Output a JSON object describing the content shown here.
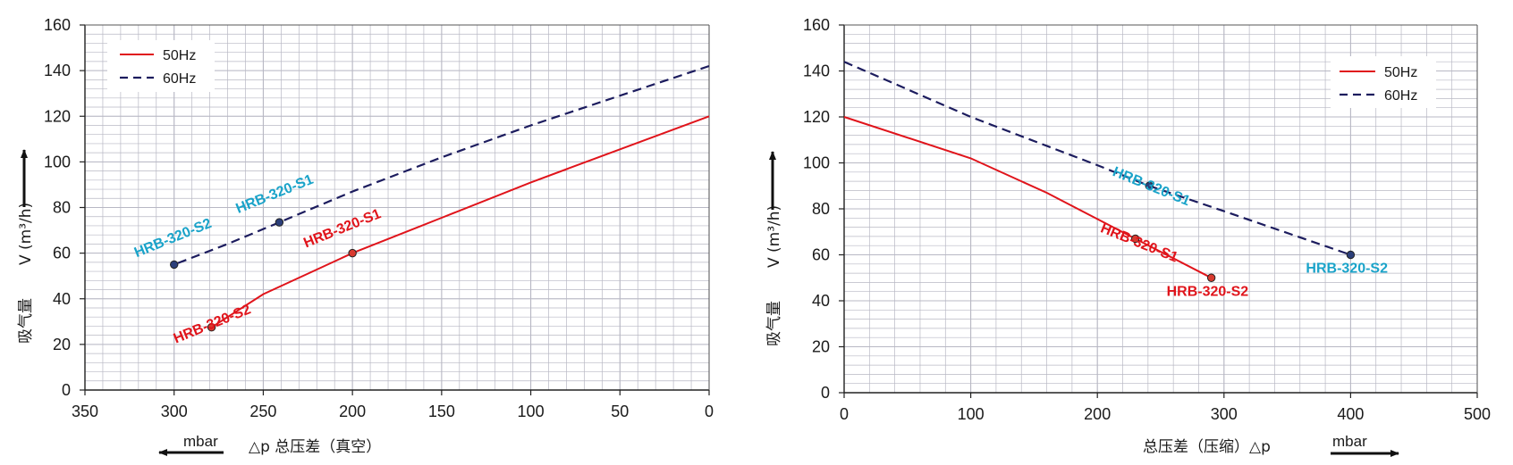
{
  "colors": {
    "hz50": "#e0141b",
    "hz60": "#1c1c5e",
    "label50": "#e0141b",
    "label60": "#1aa3c9",
    "grid": "#b8b8c4"
  },
  "chart_data": [
    {
      "type": "line",
      "xlabel": "△p  总压差（真空）",
      "ylabel_line1": "吸气量",
      "ylabel_line2": "V (m³/h)",
      "x_unit": "mbar",
      "xlim": [
        350,
        0
      ],
      "ylim": [
        0,
        160
      ],
      "x_ticks": [
        350,
        300,
        250,
        200,
        150,
        100,
        50,
        0
      ],
      "y_ticks": [
        0,
        20,
        40,
        60,
        80,
        100,
        120,
        140,
        160
      ],
      "grid": true,
      "legend_position": "top-left",
      "series": [
        {
          "name": "50Hz",
          "style": "solid",
          "x": [
            0,
            50,
            100,
            150,
            200,
            225,
            250,
            279
          ],
          "y": [
            120,
            105.5,
            91,
            75.5,
            60,
            51,
            42,
            27.5
          ]
        },
        {
          "name": "60Hz",
          "style": "dashed",
          "x": [
            0,
            50,
            100,
            150,
            200,
            241,
            270,
            300
          ],
          "y": [
            142,
            129,
            116,
            102,
            87,
            73.5,
            64,
            55
          ]
        }
      ],
      "annotations": [
        {
          "text": "HRB-320-S2",
          "series": 0,
          "x": 279,
          "y": 27.5
        },
        {
          "text": "HRB-320-S1",
          "series": 0,
          "x": 200,
          "y": 60
        },
        {
          "text": "HRB-320-S2",
          "series": 1,
          "x": 300,
          "y": 55
        },
        {
          "text": "HRB-320-S1",
          "series": 1,
          "x": 241,
          "y": 73.5
        }
      ]
    },
    {
      "type": "line",
      "xlabel": "总压差（压缩）△p",
      "ylabel_line1": "吸气量",
      "ylabel_line2": "V (m³/h)",
      "x_unit": "mbar",
      "xlim": [
        0,
        500
      ],
      "ylim": [
        0,
        160
      ],
      "x_ticks": [
        0,
        100,
        200,
        300,
        400,
        500
      ],
      "y_ticks": [
        0,
        20,
        40,
        60,
        80,
        100,
        120,
        140,
        160
      ],
      "grid": true,
      "legend_position": "top-right",
      "series": [
        {
          "name": "50Hz",
          "style": "solid",
          "x": [
            0,
            100,
            160,
            230,
            290
          ],
          "y": [
            120,
            102,
            87,
            67,
            50
          ]
        },
        {
          "name": "60Hz",
          "style": "dashed",
          "x": [
            0,
            100,
            200,
            241,
            300,
            400
          ],
          "y": [
            144,
            120,
            99,
            90,
            79,
            60
          ]
        }
      ],
      "annotations": [
        {
          "text": "HRB-320-S1",
          "series": 0,
          "x": 230,
          "y": 67
        },
        {
          "text": "HRB-320-S2",
          "series": 0,
          "x": 290,
          "y": 50
        },
        {
          "text": "HRB-320-S1",
          "series": 1,
          "x": 241,
          "y": 90
        },
        {
          "text": "HRB-320-S2",
          "series": 1,
          "x": 400,
          "y": 60
        }
      ]
    }
  ]
}
